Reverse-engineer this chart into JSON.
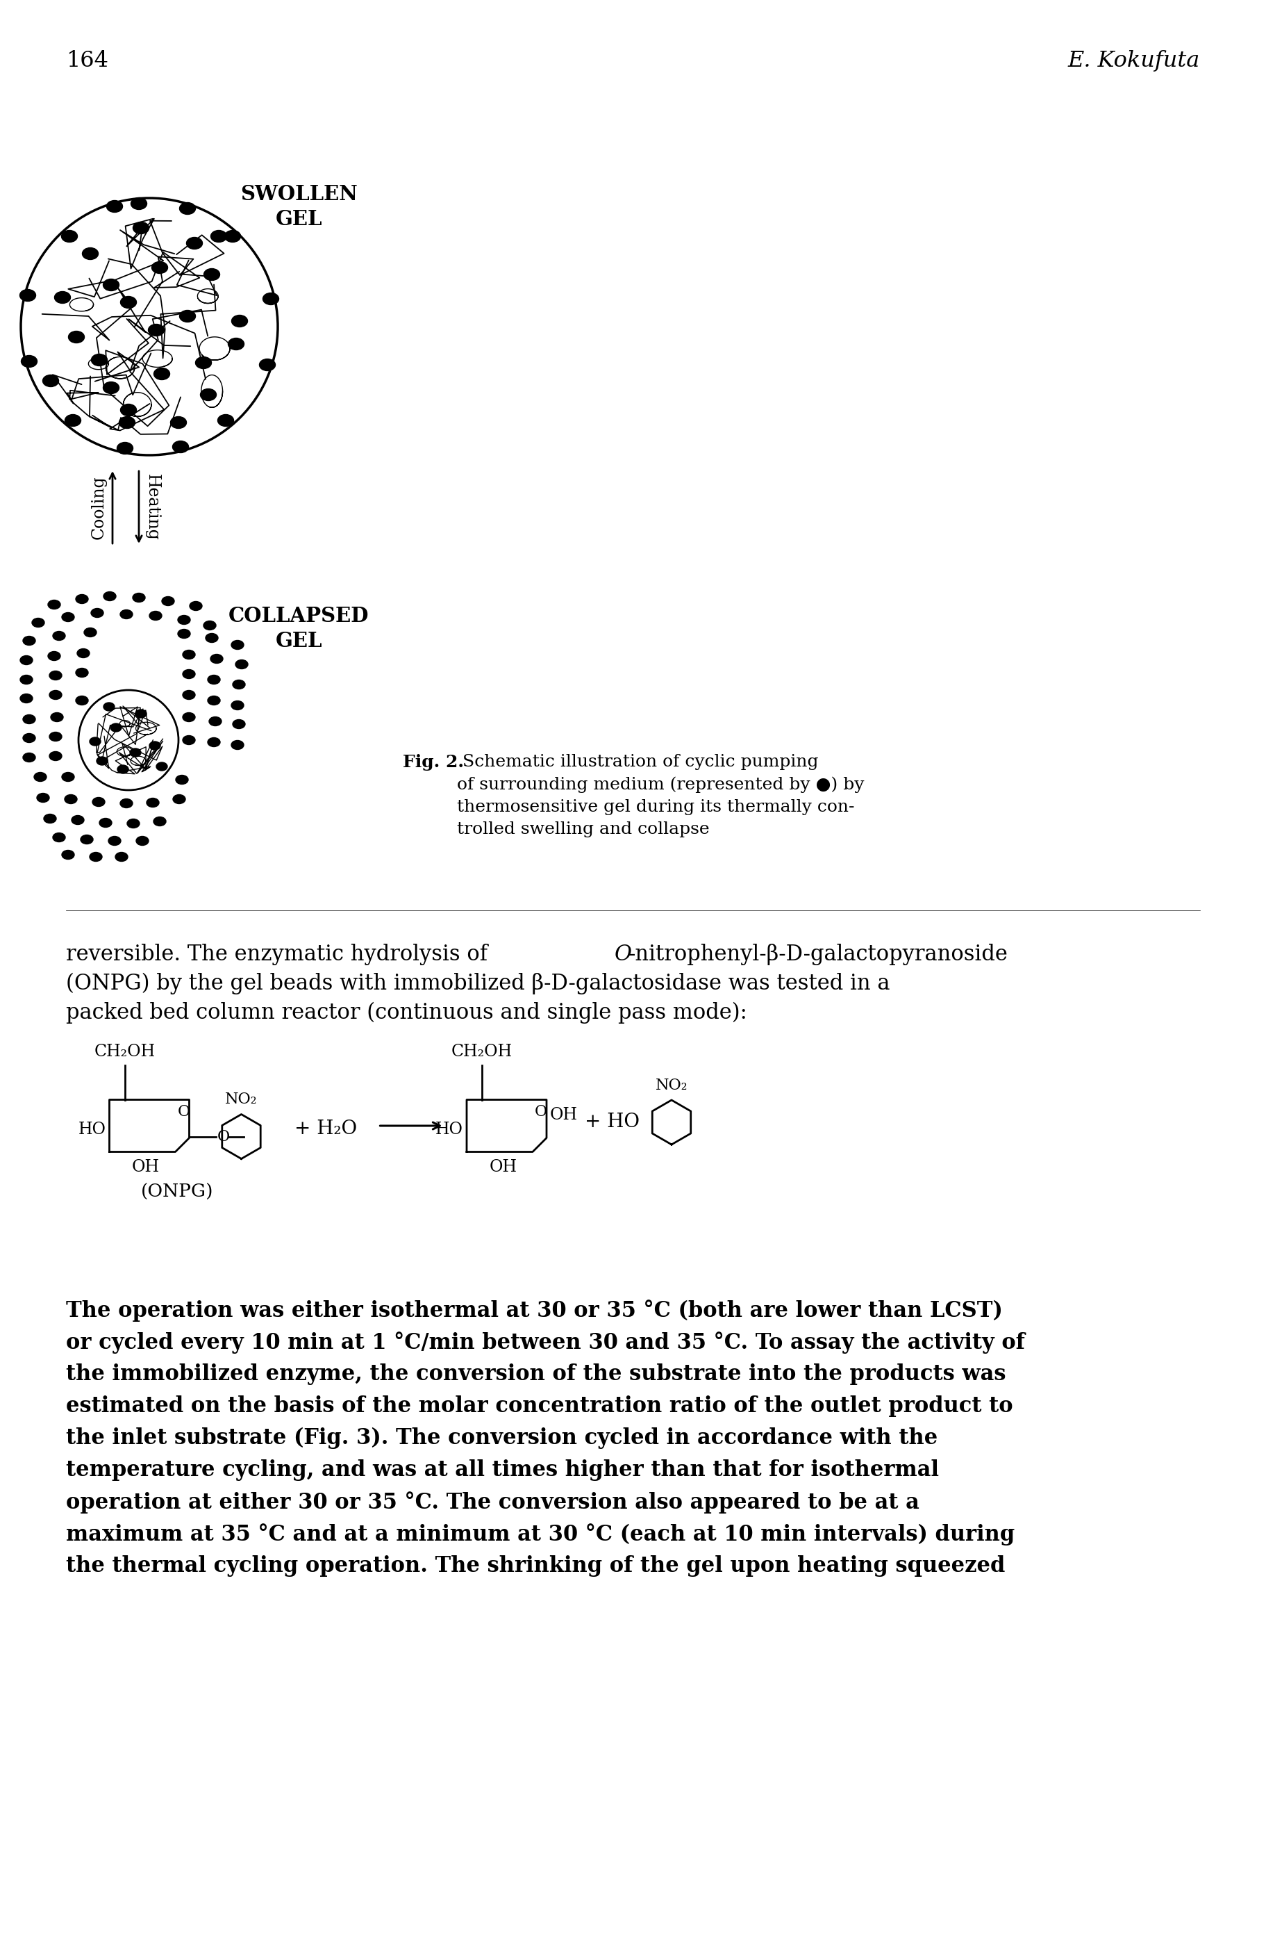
{
  "page_number": "164",
  "header_right": "E. Kokufuta",
  "swollen_label": "SWOLLEN\nGEL",
  "collapsed_label": "COLLAPSED\nGEL",
  "cooling_label": "Cooling",
  "heating_label": "Heating",
  "fig_caption_bold": "Fig. 2.",
  "fig_caption_rest": " Schematic illustration of cyclic pumping\nof surrounding medium (represented by ●) by\nthermosensitive gel during its thermally con-\ntrolled swelling and collapse",
  "para1_italic_part": "O",
  "para1": "reversible. The enzymatic hydrolysis of O-nitrophenyl-β-ᴅ-galactopyranoside\n(ONPG) by the gel beads with immobilized β-ᴅ-galactosidase was tested in a\npacked bed column reactor (continuous and single pass mode):",
  "para2": "The operation was either isothermal at 30 or 35 °C (both are lower than LCST)\nor cycled every 10 min at 1 °C/min between 30 and 35 °C. To assay the activity of\nthe immobilized enzyme, the conversion of the substrate into the products was\nestimated on the basis of the molar concentration ratio of the outlet product to\nthe inlet substrate (Fig. 3). The conversion cycled in accordance with the\ntemperature cycling, and was at all times higher than that for isothermal\noperation at either 30 or 35 °C. The conversion also appeared to be at a\nmaximum at 35 °C and at a minimum at 30 °C (each at 10 min intervals) during\nthe thermal cycling operation. The shrinking of the gel upon heating squeezed",
  "onpg_label": "(ONPG)",
  "bg_color": "#ffffff",
  "text_color": "#000000"
}
